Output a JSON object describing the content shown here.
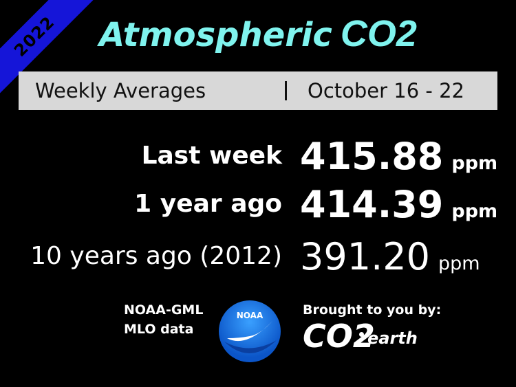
{
  "ribbon": "2022",
  "title": {
    "main": "Atmospheric",
    "emphasis": "CO2"
  },
  "subtitle": {
    "left": "Weekly Averages",
    "right": "October 16 - 22"
  },
  "rows": [
    {
      "label": "Last week",
      "value": "415.88",
      "unit": "ppm"
    },
    {
      "label": "1 year ago",
      "value": "414.39",
      "unit": "ppm"
    },
    {
      "label": "10 years ago (2012)",
      "value": "391.20",
      "unit": "ppm"
    }
  ],
  "source": {
    "line1": "NOAA-GML",
    "line2": "MLO data",
    "logo": "NOAA"
  },
  "credit": {
    "text": "Brought to you by:",
    "logo_main": "CO2",
    "logo_sub": "earth"
  }
}
